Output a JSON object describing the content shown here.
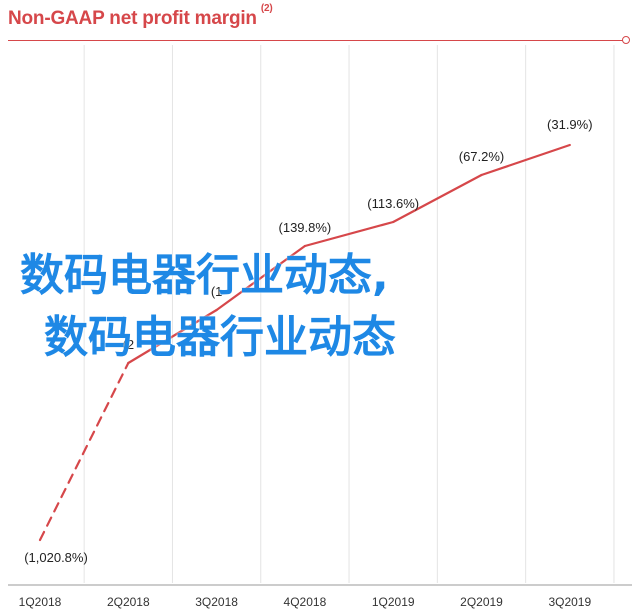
{
  "header": {
    "title": "Non-GAAP net profit margin",
    "footnote": "(2)"
  },
  "overlay": {
    "line1": "数码电器行业动态,",
    "line2": "数码电器行业动态"
  },
  "colors": {
    "line": "#d6474a",
    "grid": "#e4e4e4",
    "overlay_text": "#1e88e5"
  },
  "chart_data": {
    "type": "line",
    "title": "Non-GAAP net profit margin",
    "xlabel": "",
    "ylabel": "",
    "categories": [
      "1Q2018",
      "2Q2018",
      "3Q2018",
      "4Q2018",
      "1Q2019",
      "2Q2019",
      "3Q2019"
    ],
    "values": [
      -1020.8,
      -253,
      -163,
      -139.8,
      -113.6,
      -67.2,
      -31.9
    ],
    "data_labels": [
      "(1,020.8%)",
      "",
      "",
      "(139.8%)",
      "(113.6%)",
      "(67.2%)",
      "(31.9%)"
    ],
    "partial_labels": [
      "",
      "(2",
      "(1",
      "",
      "",
      "",
      ""
    ],
    "dashed_until_index": 1,
    "grid": "vertical",
    "legend": "none"
  }
}
